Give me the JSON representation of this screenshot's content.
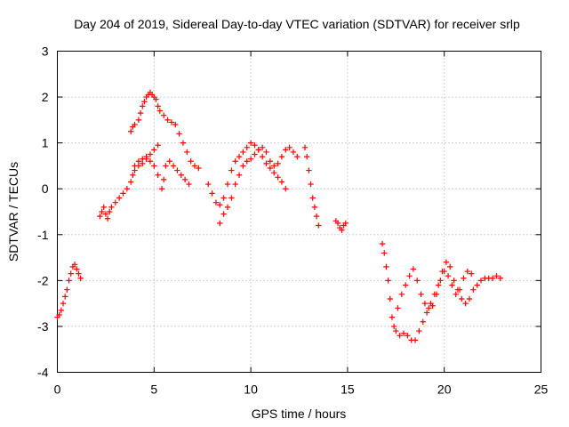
{
  "chart_data": {
    "type": "scatter",
    "title": "Day 204 of 2019, Sidereal Day-to-day VTEC variation (SDTVAR) for receiver srlp",
    "xlabel": "GPS time / hours",
    "ylabel": "SDTVAR / TECUs",
    "xlim": [
      0,
      25
    ],
    "ylim": [
      -4,
      3
    ],
    "xticks": [
      "0",
      "5",
      "10",
      "15",
      "20",
      "25"
    ],
    "yticks": [
      "-4",
      "-3",
      "-2",
      "-1",
      "0",
      "1",
      "2",
      "3"
    ],
    "grid": true,
    "marker": "+",
    "color": "#ff0000",
    "series": [
      {
        "name": "SDTVAR",
        "points": [
          [
            0.0,
            -2.8
          ],
          [
            0.1,
            -2.75
          ],
          [
            0.2,
            -2.65
          ],
          [
            0.3,
            -2.5
          ],
          [
            0.4,
            -2.35
          ],
          [
            0.5,
            -2.2
          ],
          [
            0.6,
            -2.0
          ],
          [
            0.7,
            -1.85
          ],
          [
            0.8,
            -1.7
          ],
          [
            0.9,
            -1.65
          ],
          [
            1.0,
            -1.75
          ],
          [
            1.1,
            -1.85
          ],
          [
            1.2,
            -1.95
          ],
          [
            2.2,
            -0.6
          ],
          [
            2.3,
            -0.5
          ],
          [
            2.4,
            -0.4
          ],
          [
            2.5,
            -0.55
          ],
          [
            2.6,
            -0.65
          ],
          [
            2.7,
            -0.5
          ],
          [
            2.8,
            -0.4
          ],
          [
            3.0,
            -0.3
          ],
          [
            3.2,
            -0.2
          ],
          [
            3.4,
            -0.1
          ],
          [
            3.6,
            0.0
          ],
          [
            3.8,
            0.15
          ],
          [
            3.9,
            0.3
          ],
          [
            4.0,
            0.4
          ],
          [
            4.2,
            0.5
          ],
          [
            4.4,
            0.55
          ],
          [
            4.6,
            0.65
          ],
          [
            4.8,
            0.75
          ],
          [
            5.0,
            0.85
          ],
          [
            5.2,
            0.95
          ],
          [
            3.8,
            1.25
          ],
          [
            3.9,
            1.35
          ],
          [
            4.0,
            1.4
          ],
          [
            4.2,
            1.5
          ],
          [
            4.3,
            1.65
          ],
          [
            4.4,
            1.8
          ],
          [
            4.5,
            1.9
          ],
          [
            4.6,
            2.0
          ],
          [
            4.7,
            2.05
          ],
          [
            4.8,
            2.1
          ],
          [
            4.9,
            2.05
          ],
          [
            5.0,
            2.0
          ],
          [
            5.1,
            1.95
          ],
          [
            5.2,
            1.8
          ],
          [
            5.3,
            1.7
          ],
          [
            5.5,
            1.6
          ],
          [
            5.7,
            1.5
          ],
          [
            5.9,
            1.45
          ],
          [
            6.1,
            1.4
          ],
          [
            6.3,
            1.2
          ],
          [
            6.5,
            1.0
          ],
          [
            6.7,
            0.8
          ],
          [
            6.9,
            0.6
          ],
          [
            7.1,
            0.5
          ],
          [
            7.3,
            0.45
          ],
          [
            4.0,
            0.5
          ],
          [
            4.2,
            0.6
          ],
          [
            4.4,
            0.65
          ],
          [
            4.6,
            0.7
          ],
          [
            4.8,
            0.6
          ],
          [
            5.0,
            0.5
          ],
          [
            5.2,
            0.3
          ],
          [
            5.4,
            0.0
          ],
          [
            5.5,
            0.2
          ],
          [
            5.6,
            0.5
          ],
          [
            5.8,
            0.6
          ],
          [
            6.0,
            0.5
          ],
          [
            6.2,
            0.4
          ],
          [
            6.4,
            0.3
          ],
          [
            6.6,
            0.2
          ],
          [
            6.8,
            0.1
          ],
          [
            7.8,
            0.1
          ],
          [
            8.0,
            -0.1
          ],
          [
            8.2,
            -0.3
          ],
          [
            8.4,
            -0.35
          ],
          [
            8.6,
            -0.2
          ],
          [
            8.8,
            0.1
          ],
          [
            9.0,
            0.4
          ],
          [
            9.2,
            0.6
          ],
          [
            9.4,
            0.7
          ],
          [
            9.6,
            0.8
          ],
          [
            9.8,
            0.9
          ],
          [
            10.0,
            1.0
          ],
          [
            10.2,
            0.95
          ],
          [
            10.4,
            0.85
          ],
          [
            10.6,
            0.7
          ],
          [
            10.8,
            0.55
          ],
          [
            11.0,
            0.45
          ],
          [
            11.2,
            0.35
          ],
          [
            11.4,
            0.25
          ],
          [
            11.6,
            0.15
          ],
          [
            11.8,
            0.0
          ],
          [
            8.4,
            -0.75
          ],
          [
            8.6,
            -0.55
          ],
          [
            8.8,
            -0.4
          ],
          [
            9.0,
            -0.2
          ],
          [
            9.2,
            0.1
          ],
          [
            9.4,
            0.3
          ],
          [
            9.6,
            0.5
          ],
          [
            9.8,
            0.6
          ],
          [
            10.0,
            0.65
          ],
          [
            10.2,
            0.75
          ],
          [
            10.4,
            0.85
          ],
          [
            10.6,
            0.9
          ],
          [
            10.8,
            0.8
          ],
          [
            11.0,
            0.6
          ],
          [
            11.2,
            0.5
          ],
          [
            11.4,
            0.55
          ],
          [
            11.6,
            0.7
          ],
          [
            11.8,
            0.85
          ],
          [
            12.0,
            0.9
          ],
          [
            12.2,
            0.8
          ],
          [
            12.4,
            0.7
          ],
          [
            12.8,
            0.9
          ],
          [
            12.9,
            0.7
          ],
          [
            13.0,
            0.4
          ],
          [
            13.1,
            0.1
          ],
          [
            13.2,
            -0.2
          ],
          [
            13.3,
            -0.4
          ],
          [
            13.4,
            -0.6
          ],
          [
            13.5,
            -0.8
          ],
          [
            14.4,
            -0.7
          ],
          [
            14.5,
            -0.75
          ],
          [
            14.6,
            -0.85
          ],
          [
            14.7,
            -0.9
          ],
          [
            14.8,
            -0.8
          ],
          [
            14.9,
            -0.75
          ],
          [
            16.8,
            -1.2
          ],
          [
            16.9,
            -1.4
          ],
          [
            17.0,
            -1.7
          ],
          [
            17.1,
            -2.0
          ],
          [
            17.2,
            -2.4
          ],
          [
            17.3,
            -2.8
          ],
          [
            17.4,
            -3.0
          ],
          [
            17.5,
            -3.1
          ],
          [
            17.7,
            -3.2
          ],
          [
            17.9,
            -3.15
          ],
          [
            18.1,
            -3.2
          ],
          [
            18.3,
            -3.3
          ],
          [
            18.5,
            -3.3
          ],
          [
            18.7,
            -3.1
          ],
          [
            18.9,
            -2.9
          ],
          [
            19.1,
            -2.7
          ],
          [
            19.3,
            -2.5
          ],
          [
            19.5,
            -2.3
          ],
          [
            19.7,
            -2.1
          ],
          [
            19.9,
            -1.8
          ],
          [
            20.1,
            -1.6
          ],
          [
            20.3,
            -1.7
          ],
          [
            20.5,
            -2.0
          ],
          [
            20.7,
            -2.2
          ],
          [
            20.9,
            -2.4
          ],
          [
            21.1,
            -2.5
          ],
          [
            21.3,
            -2.4
          ],
          [
            21.5,
            -2.2
          ],
          [
            21.7,
            -2.1
          ],
          [
            21.9,
            -2.0
          ],
          [
            22.1,
            -1.95
          ],
          [
            22.3,
            -1.95
          ],
          [
            22.5,
            -1.95
          ],
          [
            22.7,
            -1.9
          ],
          [
            22.9,
            -1.95
          ],
          [
            17.6,
            -2.6
          ],
          [
            17.8,
            -2.3
          ],
          [
            18.0,
            -2.1
          ],
          [
            18.2,
            -1.9
          ],
          [
            18.4,
            -1.75
          ],
          [
            18.6,
            -2.0
          ],
          [
            18.8,
            -2.3
          ],
          [
            19.0,
            -2.5
          ],
          [
            19.2,
            -2.6
          ],
          [
            19.4,
            -2.55
          ],
          [
            19.6,
            -2.3
          ],
          [
            19.8,
            -2.0
          ],
          [
            20.0,
            -1.8
          ],
          [
            20.2,
            -1.9
          ],
          [
            20.4,
            -2.1
          ],
          [
            20.6,
            -2.3
          ],
          [
            20.8,
            -2.2
          ],
          [
            21.0,
            -1.95
          ],
          [
            21.2,
            -1.8
          ],
          [
            21.4,
            -1.85
          ]
        ]
      }
    ]
  }
}
